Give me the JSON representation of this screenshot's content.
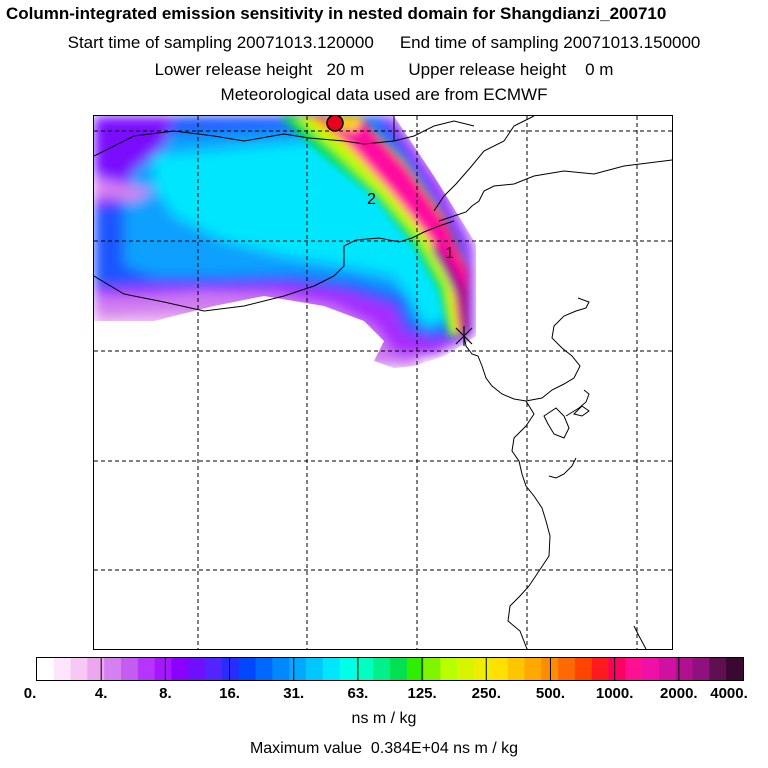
{
  "header": {
    "title": "Column-integrated emission sensitivity in nested domain for Shangdianzi_200710",
    "start_label": "Start time of sampling 20071013.120000",
    "end_label": "End time of sampling 20071013.150000",
    "lower_label": "Lower release height   20 m",
    "upper_label": "Upper release height    0 m",
    "met_label": "Meteorological data used are from ECMWF"
  },
  "map": {
    "markers": [
      {
        "label": "1"
      },
      {
        "label": "2"
      }
    ],
    "station_marker_color": "#e8001c",
    "receptor_marker": "x-cross"
  },
  "colorbar": {
    "tick_labels": [
      "0.",
      "4.",
      "8.",
      "16.",
      "31.",
      "63.",
      "125.",
      "250.",
      "500.",
      "1000.",
      "2000.",
      "4000."
    ],
    "colors": [
      "#ffffff",
      "#fde6fb",
      "#f7c8f3",
      "#eaa6ee",
      "#d67ff0",
      "#c45cf2",
      "#b535ff",
      "#a616ff",
      "#8a00ff",
      "#6e10ff",
      "#5225ff",
      "#2a2cff",
      "#0047ff",
      "#0068ff",
      "#0088ff",
      "#00a8ff",
      "#00c8ff",
      "#00e6ff",
      "#00ffe8",
      "#00ffc0",
      "#00f08a",
      "#00e050",
      "#30ee00",
      "#80f500",
      "#b8ff00",
      "#d8f500",
      "#f0ee00",
      "#ffe000",
      "#ffc600",
      "#ffa800",
      "#ff8c00",
      "#ff6a00",
      "#ff4400",
      "#ff1a20",
      "#ff0060",
      "#ff1090",
      "#f010a8",
      "#d010a0",
      "#b01090",
      "#901080",
      "#601050",
      "#3a0830"
    ],
    "units": "ns m / kg"
  },
  "footer": {
    "max_value_label": "Maximum value  0.384E+04 ns m / kg"
  }
}
